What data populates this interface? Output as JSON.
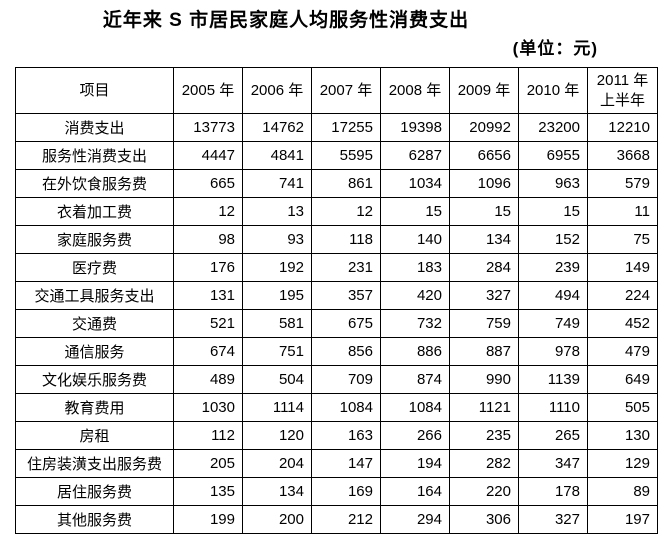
{
  "chart_data": {
    "type": "table",
    "title": "近年来 S 市居民家庭人均服务性消费支出",
    "unit_note": "(单位：元)",
    "columns": [
      {
        "label": "项目"
      },
      {
        "label": "2005 年"
      },
      {
        "label": "2006 年"
      },
      {
        "label": "2007 年"
      },
      {
        "label": "2008 年"
      },
      {
        "label": "2009 年"
      },
      {
        "label": "2010 年"
      },
      {
        "label": "2011 年",
        "label2": "上半年"
      }
    ],
    "rows": [
      {
        "label": "消费支出",
        "values": [
          13773,
          14762,
          17255,
          19398,
          20992,
          23200,
          12210
        ]
      },
      {
        "label": "服务性消费支出",
        "values": [
          4447,
          4841,
          5595,
          6287,
          6656,
          6955,
          3668
        ]
      },
      {
        "label": "在外饮食服务费",
        "values": [
          665,
          741,
          861,
          1034,
          1096,
          963,
          579
        ]
      },
      {
        "label": "衣着加工费",
        "values": [
          12,
          13,
          12,
          15,
          15,
          15,
          11
        ]
      },
      {
        "label": "家庭服务费",
        "values": [
          98,
          93,
          118,
          140,
          134,
          152,
          75
        ]
      },
      {
        "label": "医疗费",
        "values": [
          176,
          192,
          231,
          183,
          284,
          239,
          149
        ]
      },
      {
        "label": "交通工具服务支出",
        "values": [
          131,
          195,
          357,
          420,
          327,
          494,
          224
        ]
      },
      {
        "label": "交通费",
        "values": [
          521,
          581,
          675,
          732,
          759,
          749,
          452
        ]
      },
      {
        "label": "通信服务",
        "values": [
          674,
          751,
          856,
          886,
          887,
          978,
          479
        ]
      },
      {
        "label": "文化娱乐服务费",
        "values": [
          489,
          504,
          709,
          874,
          990,
          1139,
          649
        ]
      },
      {
        "label": "教育费用",
        "values": [
          1030,
          1114,
          1084,
          1084,
          1121,
          1110,
          505
        ]
      },
      {
        "label": "房租",
        "values": [
          112,
          120,
          163,
          266,
          235,
          265,
          130
        ]
      },
      {
        "label": "住房装潢支出服务费",
        "values": [
          205,
          204,
          147,
          194,
          282,
          347,
          129
        ]
      },
      {
        "label": "居住服务费",
        "values": [
          135,
          134,
          169,
          164,
          220,
          178,
          89
        ]
      },
      {
        "label": "其他服务费",
        "values": [
          199,
          200,
          212,
          294,
          306,
          327,
          197
        ]
      }
    ],
    "layout": {
      "grid": true,
      "first_column_align": "center",
      "value_align": "right"
    },
    "colors": {
      "text": "#000000",
      "border": "#000000",
      "background": "#ffffff"
    }
  }
}
